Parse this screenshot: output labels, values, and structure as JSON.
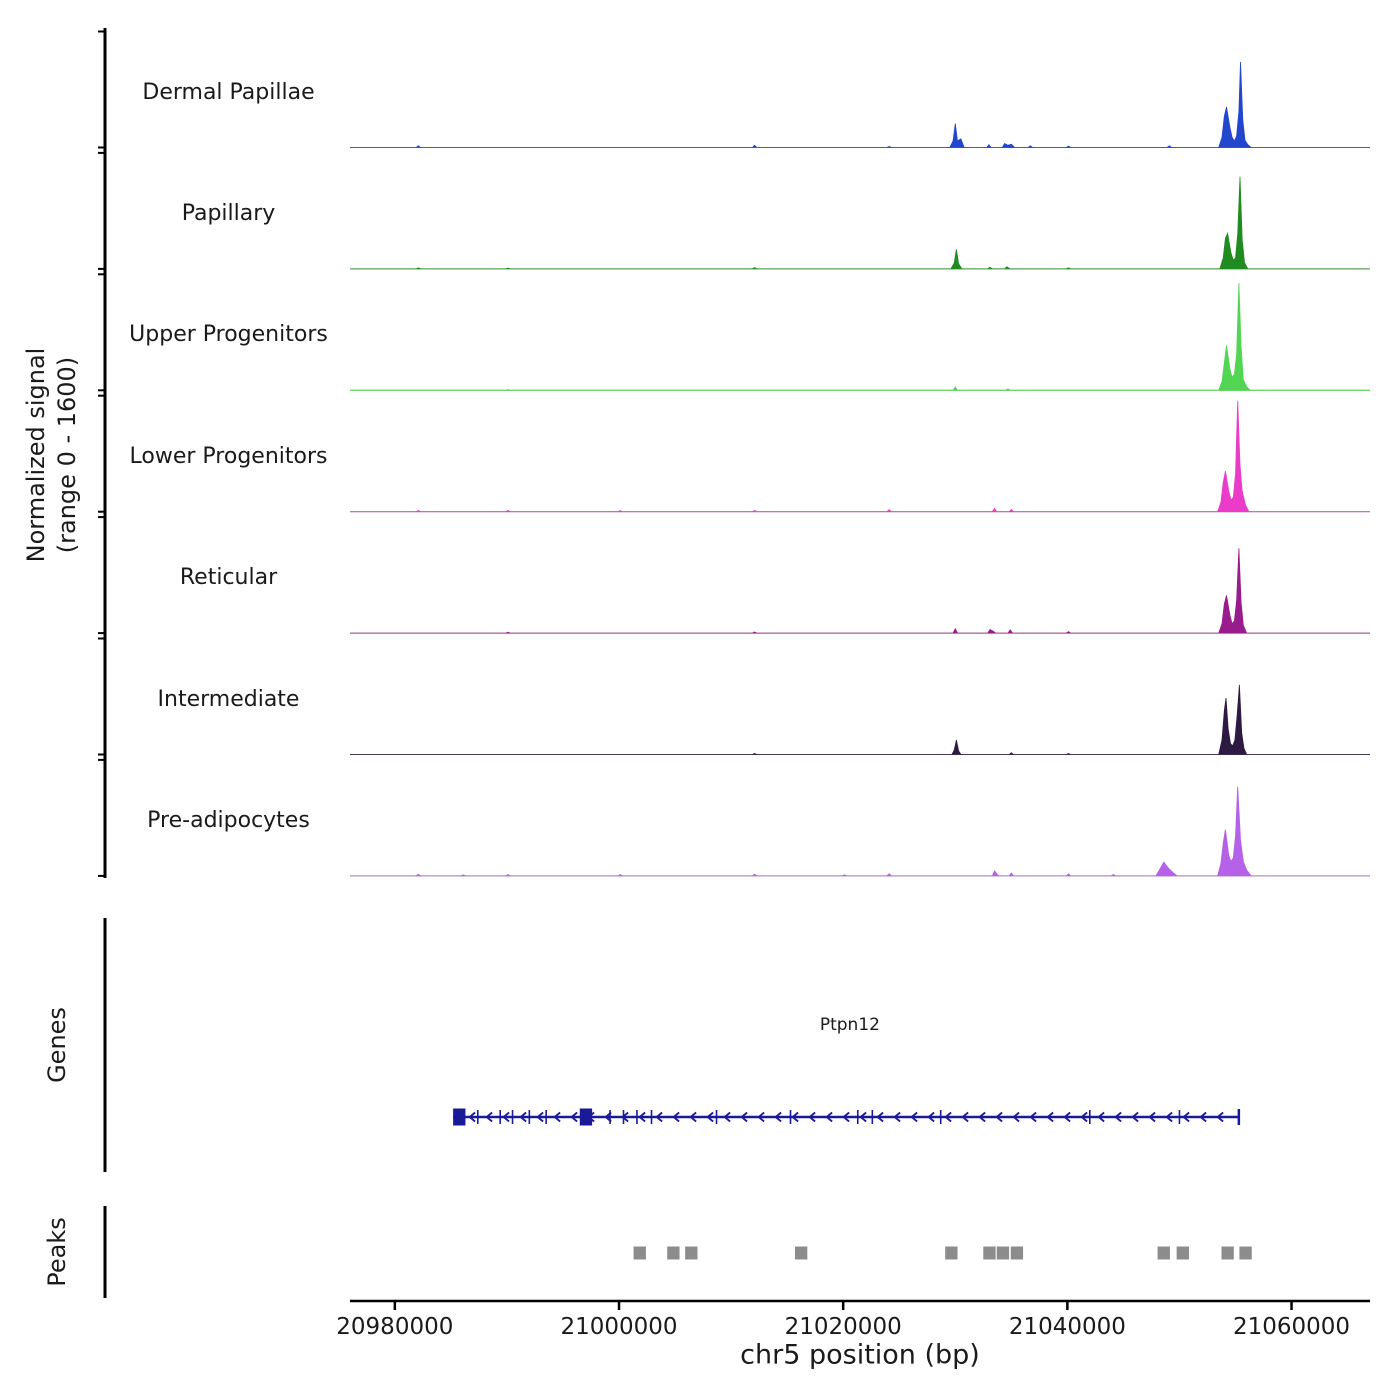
{
  "labels": {
    "y_axis_line1": "Normalized signal",
    "y_axis_line2": "(range 0 - 1600)",
    "genes": "Genes",
    "peaks": "Peaks",
    "x_axis_title": "chr5 position (bp)"
  },
  "chart_data": {
    "type": "area",
    "title": "",
    "xlabel": "chr5 position (bp)",
    "ylabel": "Normalized signal (range 0 - 1600)",
    "x_range_bp": [
      20976000,
      21067000
    ],
    "y_range_per_track": [
      0,
      1600
    ],
    "grid": false,
    "x_ticks": [
      {
        "bp": 20980000,
        "label": "20980000"
      },
      {
        "bp": 21000000,
        "label": "21000000"
      },
      {
        "bp": 21020000,
        "label": "21020000"
      },
      {
        "bp": 21040000,
        "label": "21040000"
      },
      {
        "bp": 21060000,
        "label": "21060000"
      }
    ],
    "tracks": [
      {
        "name": "Dermal Papillae",
        "color": "#2346cf",
        "points": [
          [
            20976000,
            0
          ],
          [
            20981900,
            0
          ],
          [
            20982100,
            25
          ],
          [
            20982300,
            0
          ],
          [
            21011900,
            0
          ],
          [
            21012100,
            30
          ],
          [
            21012300,
            0
          ],
          [
            21023900,
            0
          ],
          [
            21024100,
            15
          ],
          [
            21024300,
            0
          ],
          [
            21029500,
            0
          ],
          [
            21029800,
            90
          ],
          [
            21030000,
            330
          ],
          [
            21030200,
            90
          ],
          [
            21030500,
            120
          ],
          [
            21030800,
            0
          ],
          [
            21032800,
            0
          ],
          [
            21033000,
            40
          ],
          [
            21033200,
            0
          ],
          [
            21034200,
            0
          ],
          [
            21034400,
            55
          ],
          [
            21034700,
            30
          ],
          [
            21035000,
            45
          ],
          [
            21035300,
            0
          ],
          [
            21036500,
            0
          ],
          [
            21036700,
            25
          ],
          [
            21036900,
            0
          ],
          [
            21039900,
            0
          ],
          [
            21040100,
            20
          ],
          [
            21040300,
            0
          ],
          [
            21048900,
            0
          ],
          [
            21049100,
            25
          ],
          [
            21049300,
            0
          ],
          [
            21053500,
            0
          ],
          [
            21053800,
            140
          ],
          [
            21054000,
            430
          ],
          [
            21054200,
            560
          ],
          [
            21054500,
            280
          ],
          [
            21054700,
            140
          ],
          [
            21054900,
            90
          ],
          [
            21055100,
            160
          ],
          [
            21055300,
            500
          ],
          [
            21055450,
            1180
          ],
          [
            21055650,
            380
          ],
          [
            21055850,
            100
          ],
          [
            21056100,
            40
          ],
          [
            21056400,
            0
          ],
          [
            21067000,
            0
          ]
        ]
      },
      {
        "name": "Papillary",
        "color": "#208b20",
        "points": [
          [
            20976000,
            0
          ],
          [
            20981900,
            0
          ],
          [
            20982100,
            15
          ],
          [
            20982300,
            0
          ],
          [
            20989900,
            0
          ],
          [
            20990100,
            12
          ],
          [
            20990300,
            0
          ],
          [
            21011900,
            0
          ],
          [
            21012100,
            18
          ],
          [
            21012300,
            0
          ],
          [
            21029600,
            0
          ],
          [
            21029900,
            80
          ],
          [
            21030100,
            270
          ],
          [
            21030300,
            70
          ],
          [
            21030600,
            0
          ],
          [
            21032900,
            0
          ],
          [
            21033100,
            25
          ],
          [
            21033300,
            0
          ],
          [
            21034400,
            0
          ],
          [
            21034600,
            30
          ],
          [
            21034900,
            0
          ],
          [
            21039900,
            0
          ],
          [
            21040100,
            15
          ],
          [
            21040300,
            0
          ],
          [
            21053600,
            0
          ],
          [
            21053900,
            150
          ],
          [
            21054100,
            420
          ],
          [
            21054300,
            490
          ],
          [
            21054600,
            220
          ],
          [
            21054800,
            120
          ],
          [
            21055000,
            150
          ],
          [
            21055200,
            480
          ],
          [
            21055400,
            1270
          ],
          [
            21055600,
            400
          ],
          [
            21055800,
            90
          ],
          [
            21056100,
            0
          ],
          [
            21067000,
            0
          ]
        ]
      },
      {
        "name": "Upper Progenitors",
        "color": "#52d552",
        "points": [
          [
            20976000,
            0
          ],
          [
            20989900,
            0
          ],
          [
            20990100,
            10
          ],
          [
            20990300,
            0
          ],
          [
            21029800,
            0
          ],
          [
            21030000,
            45
          ],
          [
            21030200,
            0
          ],
          [
            21034500,
            0
          ],
          [
            21034700,
            20
          ],
          [
            21034900,
            0
          ],
          [
            21053500,
            0
          ],
          [
            21053800,
            120
          ],
          [
            21054000,
            380
          ],
          [
            21054200,
            620
          ],
          [
            21054500,
            300
          ],
          [
            21054700,
            180
          ],
          [
            21054900,
            220
          ],
          [
            21055100,
            500
          ],
          [
            21055300,
            1480
          ],
          [
            21055500,
            600
          ],
          [
            21055700,
            150
          ],
          [
            21056000,
            50
          ],
          [
            21056300,
            0
          ],
          [
            21067000,
            0
          ]
        ]
      },
      {
        "name": "Lower Progenitors",
        "color": "#ea3cc9",
        "points": [
          [
            20976000,
            0
          ],
          [
            20981900,
            0
          ],
          [
            20982100,
            18
          ],
          [
            20982300,
            0
          ],
          [
            20989900,
            0
          ],
          [
            20990100,
            20
          ],
          [
            20990300,
            0
          ],
          [
            20999900,
            0
          ],
          [
            21000100,
            15
          ],
          [
            21000300,
            0
          ],
          [
            21011900,
            0
          ],
          [
            21012100,
            18
          ],
          [
            21012300,
            0
          ],
          [
            21023900,
            0
          ],
          [
            21024100,
            28
          ],
          [
            21024300,
            0
          ],
          [
            21033300,
            0
          ],
          [
            21033500,
            45
          ],
          [
            21033700,
            0
          ],
          [
            21034800,
            0
          ],
          [
            21035000,
            30
          ],
          [
            21035200,
            0
          ],
          [
            21053400,
            0
          ],
          [
            21053700,
            130
          ],
          [
            21053900,
            400
          ],
          [
            21054100,
            560
          ],
          [
            21054400,
            280
          ],
          [
            21054600,
            160
          ],
          [
            21054800,
            200
          ],
          [
            21055000,
            520
          ],
          [
            21055200,
            1530
          ],
          [
            21055400,
            650
          ],
          [
            21055600,
            280
          ],
          [
            21055900,
            90
          ],
          [
            21056200,
            0
          ],
          [
            21067000,
            0
          ]
        ]
      },
      {
        "name": "Reticular",
        "color": "#991c8c",
        "points": [
          [
            20976000,
            0
          ],
          [
            20989900,
            0
          ],
          [
            20990100,
            12
          ],
          [
            20990300,
            0
          ],
          [
            21011900,
            0
          ],
          [
            21012100,
            15
          ],
          [
            21012300,
            0
          ],
          [
            21029800,
            0
          ],
          [
            21030000,
            60
          ],
          [
            21030200,
            0
          ],
          [
            21032900,
            0
          ],
          [
            21033100,
            50
          ],
          [
            21033400,
            25
          ],
          [
            21033600,
            0
          ],
          [
            21034700,
            0
          ],
          [
            21034900,
            45
          ],
          [
            21035100,
            0
          ],
          [
            21039900,
            0
          ],
          [
            21040100,
            20
          ],
          [
            21040300,
            0
          ],
          [
            21053500,
            0
          ],
          [
            21053800,
            130
          ],
          [
            21054000,
            400
          ],
          [
            21054200,
            520
          ],
          [
            21054500,
            250
          ],
          [
            21054700,
            130
          ],
          [
            21054900,
            170
          ],
          [
            21055100,
            450
          ],
          [
            21055300,
            1170
          ],
          [
            21055500,
            420
          ],
          [
            21055700,
            110
          ],
          [
            21056000,
            0
          ],
          [
            21067000,
            0
          ]
        ]
      },
      {
        "name": "Intermediate",
        "color": "#2d1a42",
        "points": [
          [
            20976000,
            0
          ],
          [
            21011900,
            0
          ],
          [
            21012100,
            15
          ],
          [
            21012300,
            0
          ],
          [
            21029700,
            0
          ],
          [
            21029900,
            60
          ],
          [
            21030100,
            200
          ],
          [
            21030300,
            50
          ],
          [
            21030500,
            0
          ],
          [
            21034800,
            0
          ],
          [
            21035000,
            25
          ],
          [
            21035200,
            0
          ],
          [
            21039900,
            0
          ],
          [
            21040100,
            12
          ],
          [
            21040300,
            0
          ],
          [
            21053500,
            0
          ],
          [
            21053800,
            200
          ],
          [
            21054000,
            600
          ],
          [
            21054150,
            780
          ],
          [
            21054350,
            350
          ],
          [
            21054550,
            150
          ],
          [
            21054750,
            120
          ],
          [
            21054950,
            200
          ],
          [
            21055150,
            550
          ],
          [
            21055350,
            960
          ],
          [
            21055550,
            300
          ],
          [
            21055750,
            90
          ],
          [
            21056000,
            0
          ],
          [
            21067000,
            0
          ]
        ]
      },
      {
        "name": "Pre-adipocytes",
        "color": "#b561e8",
        "points": [
          [
            20976000,
            0
          ],
          [
            20981900,
            0
          ],
          [
            20982100,
            25
          ],
          [
            20982300,
            0
          ],
          [
            20985900,
            0
          ],
          [
            20986100,
            15
          ],
          [
            20986300,
            0
          ],
          [
            20989900,
            0
          ],
          [
            20990100,
            20
          ],
          [
            20990300,
            0
          ],
          [
            20999900,
            0
          ],
          [
            21000100,
            20
          ],
          [
            21000300,
            0
          ],
          [
            21011900,
            0
          ],
          [
            21012100,
            25
          ],
          [
            21012300,
            0
          ],
          [
            21019900,
            0
          ],
          [
            21020100,
            15
          ],
          [
            21020300,
            0
          ],
          [
            21023900,
            0
          ],
          [
            21024100,
            30
          ],
          [
            21024300,
            0
          ],
          [
            21033300,
            0
          ],
          [
            21033500,
            70
          ],
          [
            21033700,
            30
          ],
          [
            21033900,
            0
          ],
          [
            21034800,
            0
          ],
          [
            21035000,
            40
          ],
          [
            21035200,
            0
          ],
          [
            21039900,
            0
          ],
          [
            21040100,
            30
          ],
          [
            21040300,
            0
          ],
          [
            21043900,
            0
          ],
          [
            21044100,
            20
          ],
          [
            21044300,
            0
          ],
          [
            21047900,
            0
          ],
          [
            21048200,
            80
          ],
          [
            21048600,
            190
          ],
          [
            21049000,
            110
          ],
          [
            21049400,
            50
          ],
          [
            21049800,
            0
          ],
          [
            21053400,
            0
          ],
          [
            21053700,
            170
          ],
          [
            21053900,
            450
          ],
          [
            21054100,
            640
          ],
          [
            21054400,
            280
          ],
          [
            21054600,
            200
          ],
          [
            21054800,
            250
          ],
          [
            21055000,
            550
          ],
          [
            21055200,
            1230
          ],
          [
            21055450,
            500
          ],
          [
            21055700,
            200
          ],
          [
            21056000,
            80
          ],
          [
            21056400,
            0
          ],
          [
            21067000,
            0
          ]
        ]
      }
    ],
    "gene": {
      "name": "Ptpn12",
      "strand": "-",
      "start_bp": 20985200,
      "end_bp": 21055300,
      "color": "#1a1a99",
      "exon_blocks_bp": [
        [
          20985200,
          20986300
        ],
        [
          20996500,
          20997600
        ]
      ],
      "exon_ticks_bp": [
        20987400,
        20989400,
        20990500,
        20992000,
        20993500,
        20999200,
        21000400,
        21001600,
        21002900,
        21008700,
        21015300,
        21021300,
        21022600,
        21028700,
        21042000,
        21050000
      ]
    },
    "peaks": {
      "color": "#8c8c8c",
      "regions_bp": [
        [
          21001300,
          21002400
        ],
        [
          21004300,
          21005400
        ],
        [
          21005900,
          21007000
        ],
        [
          21015700,
          21016800
        ],
        [
          21029100,
          21030200
        ],
        [
          21032500,
          21033600
        ],
        [
          21033700,
          21034800
        ],
        [
          21034950,
          21036050
        ],
        [
          21048050,
          21049150
        ],
        [
          21049750,
          21050850
        ],
        [
          21053750,
          21054850
        ],
        [
          21055350,
          21056450
        ]
      ]
    }
  }
}
